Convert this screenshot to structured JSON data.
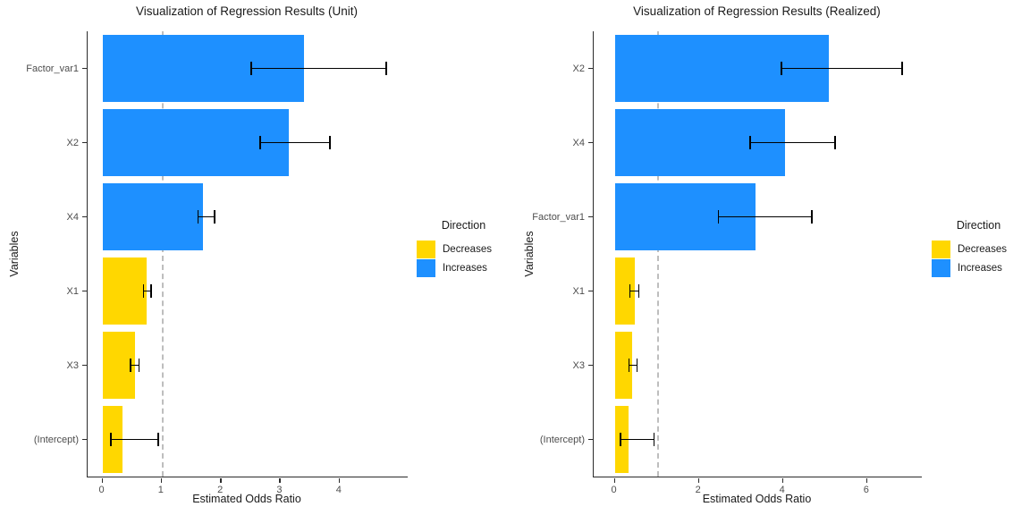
{
  "colors": {
    "increases": "#1E90FF",
    "decreases": "#FFD700",
    "reference_line": "#BEBEBE",
    "axis_text": "#4D4D4D",
    "axis_line": "#2B2B2B"
  },
  "legend": {
    "title": "Direction",
    "items": [
      {
        "label": "Decreases",
        "key": "decreases"
      },
      {
        "label": "Increases",
        "key": "increases"
      }
    ]
  },
  "chart_data": [
    {
      "type": "bar",
      "orientation": "horizontal",
      "title": "Visualization of Regression Results (Unit)",
      "xlabel": "Estimated Odds Ratio",
      "ylabel": "Variables",
      "xlim": [
        -0.25,
        5.15
      ],
      "xticks": [
        0,
        1,
        2,
        3,
        4
      ],
      "reference_line_x": 1,
      "grid": false,
      "legend_position": "right",
      "rows": [
        {
          "label": "Factor_var1",
          "odds_ratio": 3.4,
          "ci_low": 2.5,
          "ci_high": 4.8,
          "direction": "Increases"
        },
        {
          "label": "X2",
          "odds_ratio": 3.15,
          "ci_low": 2.65,
          "ci_high": 3.85,
          "direction": "Increases"
        },
        {
          "label": "X4",
          "odds_ratio": 1.7,
          "ci_low": 1.6,
          "ci_high": 1.9,
          "direction": "Increases"
        },
        {
          "label": "X1",
          "odds_ratio": 0.75,
          "ci_low": 0.68,
          "ci_high": 0.83,
          "direction": "Decreases"
        },
        {
          "label": "X3",
          "odds_ratio": 0.55,
          "ci_low": 0.46,
          "ci_high": 0.63,
          "direction": "Decreases"
        },
        {
          "label": "(Intercept)",
          "odds_ratio": 0.34,
          "ci_low": 0.13,
          "ci_high": 0.95,
          "direction": "Decreases"
        }
      ]
    },
    {
      "type": "bar",
      "orientation": "horizontal",
      "title": "Visualization of Regression Results (Realized)",
      "xlabel": "Estimated Odds Ratio",
      "ylabel": "Variables",
      "xlim": [
        -0.5,
        7.3
      ],
      "xticks": [
        0,
        2,
        4,
        6
      ],
      "reference_line_x": 1,
      "grid": false,
      "legend_position": "right",
      "rows": [
        {
          "label": "X2",
          "odds_ratio": 5.1,
          "ci_low": 3.95,
          "ci_high": 6.85,
          "direction": "Increases"
        },
        {
          "label": "X4",
          "odds_ratio": 4.05,
          "ci_low": 3.2,
          "ci_high": 5.25,
          "direction": "Increases"
        },
        {
          "label": "Factor_var1",
          "odds_ratio": 3.35,
          "ci_low": 2.45,
          "ci_high": 4.7,
          "direction": "Increases"
        },
        {
          "label": "X1",
          "odds_ratio": 0.47,
          "ci_low": 0.35,
          "ci_high": 0.59,
          "direction": "Decreases"
        },
        {
          "label": "X3",
          "odds_ratio": 0.42,
          "ci_low": 0.32,
          "ci_high": 0.55,
          "direction": "Decreases"
        },
        {
          "label": "(Intercept)",
          "odds_ratio": 0.32,
          "ci_low": 0.12,
          "ci_high": 0.95,
          "direction": "Decreases"
        }
      ]
    }
  ]
}
